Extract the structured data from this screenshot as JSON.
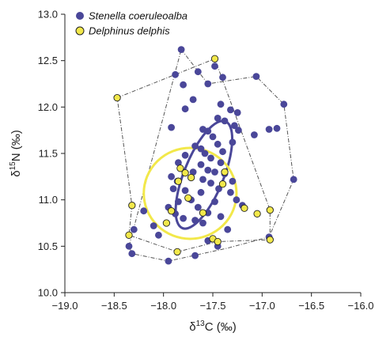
{
  "chart_data": {
    "type": "scatter",
    "title": "",
    "xlabel_parts": [
      "δ",
      "13",
      "C (‰)"
    ],
    "ylabel_parts": [
      "δ",
      "15",
      "N (‰)"
    ],
    "xlim": [
      -19.0,
      -16.0
    ],
    "ylim": [
      10.0,
      13.0
    ],
    "xticks": [
      -19.0,
      -18.5,
      -18.0,
      -17.5,
      -17.0,
      -16.5,
      -16.0
    ],
    "yticks": [
      10.0,
      10.5,
      11.0,
      11.5,
      12.0,
      12.5,
      13.0
    ],
    "x_tick_labels": [
      "−19.0",
      "−18.5",
      "−18.0",
      "−17.5",
      "−17.0",
      "−16.5",
      "−16.0"
    ],
    "y_tick_labels": [
      "10.0",
      "10.5",
      "11.0",
      "11.5",
      "12.0",
      "12.5",
      "13.0"
    ],
    "grid": false,
    "legend_position": "top-left",
    "series": [
      {
        "name": "Stenella coeruleoalba",
        "color": "#4a4799",
        "points": [
          [
            -17.82,
            12.62
          ],
          [
            -17.48,
            12.44
          ],
          [
            -17.4,
            12.32
          ],
          [
            -17.65,
            12.38
          ],
          [
            -17.88,
            12.35
          ],
          [
            -17.8,
            12.24
          ],
          [
            -17.55,
            12.25
          ],
          [
            -17.06,
            12.33
          ],
          [
            -17.7,
            12.08
          ],
          [
            -17.42,
            12.03
          ],
          [
            -16.78,
            12.03
          ],
          [
            -17.32,
            11.97
          ],
          [
            -17.78,
            11.98
          ],
          [
            -17.25,
            11.94
          ],
          [
            -17.45,
            11.88
          ],
          [
            -17.92,
            11.78
          ],
          [
            -17.38,
            11.85
          ],
          [
            -17.28,
            11.8
          ],
          [
            -17.24,
            11.75
          ],
          [
            -17.6,
            11.76
          ],
          [
            -17.55,
            11.74
          ],
          [
            -16.93,
            11.76
          ],
          [
            -17.08,
            11.7
          ],
          [
            -16.85,
            11.77
          ],
          [
            -17.5,
            11.68
          ],
          [
            -17.68,
            11.58
          ],
          [
            -17.62,
            11.55
          ],
          [
            -17.45,
            11.6
          ],
          [
            -17.3,
            11.62
          ],
          [
            -17.4,
            11.52
          ],
          [
            -17.58,
            11.5
          ],
          [
            -17.52,
            11.45
          ],
          [
            -17.78,
            11.48
          ],
          [
            -17.85,
            11.4
          ],
          [
            -17.62,
            11.38
          ],
          [
            -17.42,
            11.4
          ],
          [
            -17.7,
            11.3
          ],
          [
            -17.55,
            11.32
          ],
          [
            -17.48,
            11.3
          ],
          [
            -17.38,
            11.28
          ],
          [
            -17.6,
            11.22
          ],
          [
            -17.72,
            11.24
          ],
          [
            -17.3,
            11.2
          ],
          [
            -17.86,
            11.2
          ],
          [
            -17.92,
            11.25
          ],
          [
            -17.52,
            11.18
          ],
          [
            -17.44,
            11.12
          ],
          [
            -17.62,
            11.08
          ],
          [
            -17.78,
            11.1
          ],
          [
            -17.9,
            11.12
          ],
          [
            -17.32,
            11.08
          ],
          [
            -17.26,
            11.0
          ],
          [
            -17.72,
            11.0
          ],
          [
            -17.85,
            10.98
          ],
          [
            -17.95,
            10.92
          ],
          [
            -17.65,
            10.92
          ],
          [
            -17.48,
            10.98
          ],
          [
            -17.2,
            10.94
          ],
          [
            -17.55,
            10.86
          ],
          [
            -17.88,
            10.85
          ],
          [
            -17.8,
            10.8
          ],
          [
            -17.42,
            10.82
          ],
          [
            -18.2,
            10.88
          ],
          [
            -17.68,
            10.78
          ],
          [
            -17.6,
            10.75
          ],
          [
            -18.3,
            10.68
          ],
          [
            -18.1,
            10.72
          ],
          [
            -18.05,
            10.62
          ],
          [
            -17.35,
            10.68
          ],
          [
            -16.93,
            10.6
          ],
          [
            -18.35,
            10.5
          ],
          [
            -17.55,
            10.56
          ],
          [
            -18.32,
            10.42
          ],
          [
            -17.45,
            10.5
          ],
          [
            -17.68,
            10.4
          ],
          [
            -17.95,
            10.34
          ],
          [
            -16.68,
            11.22
          ]
        ]
      },
      {
        "name": "Delphinus delphis",
        "color": "#f2e84a",
        "points": [
          [
            -18.47,
            12.1
          ],
          [
            -17.48,
            12.52
          ],
          [
            -18.32,
            10.94
          ],
          [
            -18.35,
            10.62
          ],
          [
            -17.86,
            10.44
          ],
          [
            -17.5,
            10.58
          ],
          [
            -17.45,
            10.55
          ],
          [
            -16.92,
            10.57
          ],
          [
            -16.92,
            10.89
          ],
          [
            -17.05,
            10.85
          ],
          [
            -17.18,
            10.91
          ],
          [
            -17.97,
            10.75
          ],
          [
            -17.92,
            10.88
          ],
          [
            -17.75,
            11.02
          ],
          [
            -17.6,
            10.86
          ],
          [
            -17.83,
            11.34
          ],
          [
            -17.78,
            11.29
          ],
          [
            -17.72,
            11.24
          ],
          [
            -17.85,
            11.2
          ],
          [
            -17.38,
            11.3
          ],
          [
            -17.4,
            11.17
          ]
        ]
      }
    ],
    "hull_points": [
      [
        [
          -17.82,
          12.62
        ],
        [
          -17.55,
          12.25
        ],
        [
          -17.06,
          12.33
        ],
        [
          -16.78,
          12.03
        ],
        [
          -16.68,
          11.22
        ],
        [
          -16.93,
          10.6
        ],
        [
          -17.35,
          10.48
        ],
        [
          -17.95,
          10.34
        ],
        [
          -18.32,
          10.42
        ],
        [
          -18.35,
          10.5
        ]
      ],
      [
        [
          -18.47,
          12.1
        ],
        [
          -17.48,
          12.52
        ],
        [
          -17.3,
          12.0
        ],
        [
          -16.92,
          10.89
        ],
        [
          -16.92,
          10.57
        ],
        [
          -17.45,
          10.55
        ],
        [
          -17.86,
          10.44
        ],
        [
          -18.35,
          10.62
        ],
        [
          -18.32,
          10.94
        ]
      ]
    ],
    "ellipses": [
      {
        "cx": -17.59,
        "cy": 11.27,
        "rx": 0.2,
        "ry": 0.62,
        "rot": 22,
        "color": "#4a4799",
        "width": 3
      },
      {
        "cx": -17.73,
        "cy": 11.07,
        "rx": 0.47,
        "ry": 0.49,
        "rot": 0,
        "color": "#f2e84a",
        "width": 3
      }
    ]
  }
}
